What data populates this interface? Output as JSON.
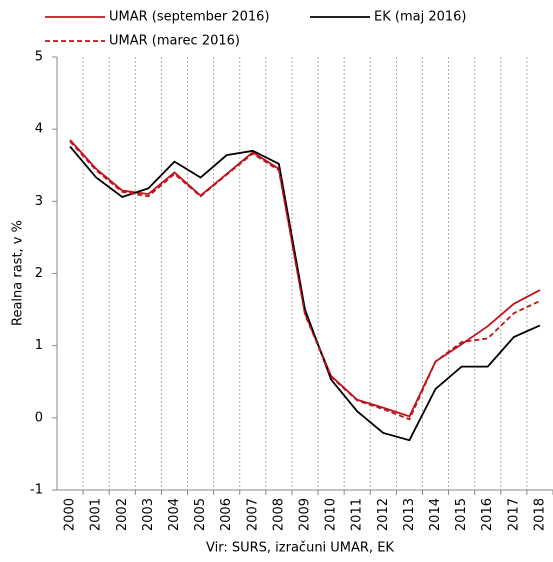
{
  "chart_data": {
    "type": "line",
    "y_label": "Realna rast, v %",
    "x_label": "Vir: SURS, izračuni UMAR, EK",
    "categories": [
      "2000",
      "2001",
      "2002",
      "2003",
      "2004",
      "2005",
      "2006",
      "2007",
      "2008",
      "2009",
      "2010",
      "2011",
      "2012",
      "2013",
      "2014",
      "2015",
      "2016",
      "2017",
      "2018"
    ],
    "series": [
      {
        "name": "UMAR (september 2016)",
        "color": "#c0141c",
        "dash": "solid",
        "values": [
          3.85,
          3.45,
          3.15,
          3.1,
          3.4,
          3.08,
          3.38,
          3.68,
          3.45,
          1.45,
          0.58,
          0.25,
          0.14,
          0.02,
          0.78,
          1.02,
          1.27,
          1.58,
          1.77
        ]
      },
      {
        "name": "EK (maj 2016)",
        "color": "#000000",
        "dash": "solid",
        "values": [
          3.76,
          3.33,
          3.06,
          3.18,
          3.55,
          3.33,
          3.64,
          3.7,
          3.52,
          1.5,
          0.53,
          0.09,
          -0.21,
          -0.31,
          0.4,
          0.71,
          0.71,
          1.12,
          1.28
        ]
      },
      {
        "name": "UMAR (marec 2016)",
        "color": "#c0141c",
        "dash": "dashed",
        "values": [
          3.83,
          3.43,
          3.13,
          3.07,
          3.38,
          3.07,
          3.37,
          3.66,
          3.43,
          1.43,
          0.57,
          0.24,
          0.12,
          -0.02,
          0.78,
          1.05,
          1.1,
          1.45,
          1.62
        ]
      }
    ],
    "ylim": [
      -1,
      5
    ],
    "yticks": [
      -1,
      0,
      1,
      2,
      3,
      4,
      5
    ],
    "grid": true
  }
}
